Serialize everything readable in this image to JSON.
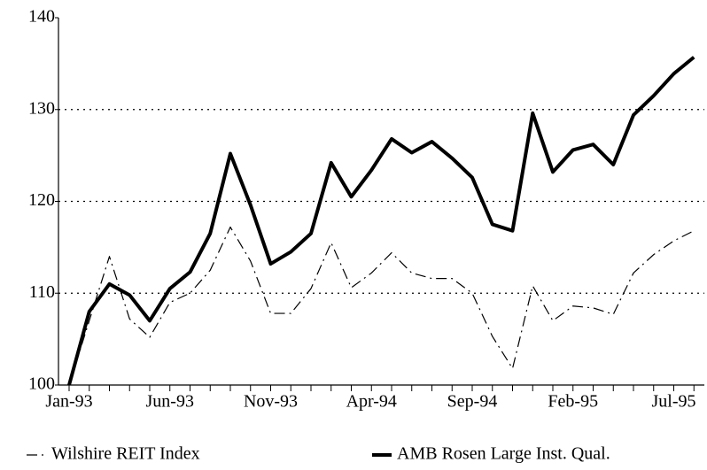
{
  "chart_data": {
    "type": "line",
    "categories": [
      "Jan-93",
      null,
      null,
      null,
      null,
      "Jun-93",
      null,
      null,
      null,
      null,
      "Nov-93",
      null,
      null,
      null,
      null,
      "Apr-94",
      null,
      null,
      null,
      null,
      "Sep-94",
      null,
      null,
      null,
      null,
      "Feb-95",
      null,
      null,
      null,
      null,
      "Jul-95",
      null
    ],
    "series": [
      {
        "name": "Wilshire REIT Index",
        "color": "#000000",
        "style": "dashdot",
        "width": 1.2,
        "values": [
          100,
          107,
          114,
          107.2,
          105.2,
          109,
          110,
          112.5,
          117.2,
          113.5,
          107.8,
          107.8,
          110.5,
          115.5,
          110.6,
          112.2,
          114.4,
          112.2,
          111.6,
          111.6,
          110,
          105.3,
          101.8,
          110.8,
          107,
          108.6,
          108.4,
          107.7,
          112.2,
          114.2,
          115.7,
          116.8
        ]
      },
      {
        "name": "AMB Rosen Large Inst. Qual.",
        "color": "#000000",
        "style": "solid",
        "width": 4,
        "values": [
          100,
          108,
          111,
          109.8,
          107,
          110.5,
          112.3,
          116.5,
          125.2,
          119.6,
          113.2,
          114.5,
          116.5,
          124.2,
          120.5,
          123.4,
          126.8,
          125.3,
          126.5,
          124.7,
          122.6,
          117.5,
          116.8,
          129.6,
          123.2,
          125.6,
          126.2,
          124,
          129.4,
          131.5,
          133.9,
          135.7
        ]
      }
    ],
    "ylim": [
      100,
      140
    ],
    "yticks": [
      100,
      110,
      120,
      130,
      140
    ],
    "grid": true
  }
}
